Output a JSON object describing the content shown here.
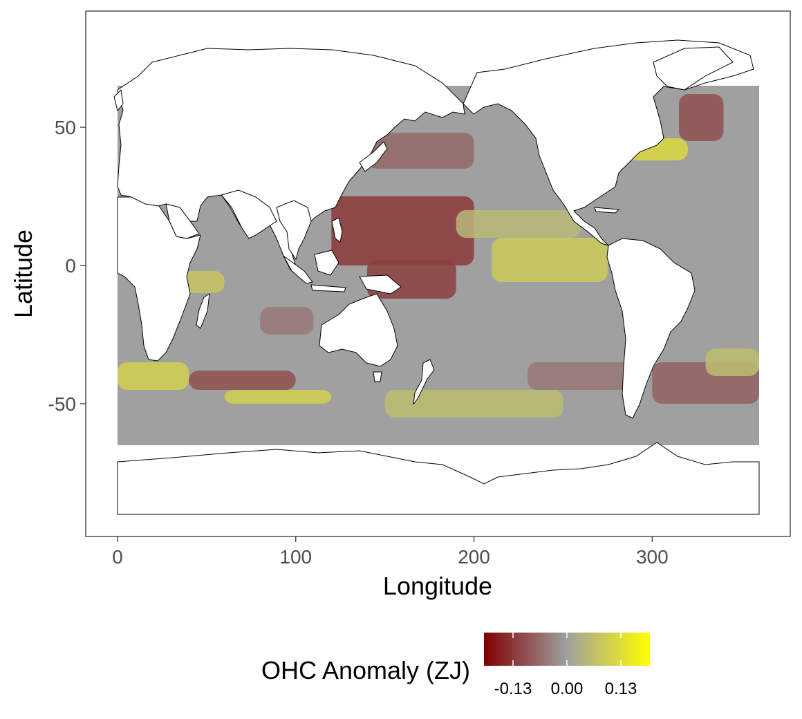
{
  "chart_data": {
    "type": "heatmap",
    "title": "",
    "xlabel": "Longitude",
    "ylabel": "Latitude",
    "xlim": [
      -18,
      378
    ],
    "ylim": [
      -97,
      92
    ],
    "x_ticks": [
      {
        "value": 0,
        "label": "0"
      },
      {
        "value": 100,
        "label": "100"
      },
      {
        "value": 200,
        "label": "200"
      },
      {
        "value": 300,
        "label": "300"
      }
    ],
    "y_ticks": [
      {
        "value": 50,
        "label": "50"
      },
      {
        "value": 0,
        "label": "0"
      },
      {
        "value": -50,
        "label": "-50"
      }
    ],
    "grid": false,
    "data_extent": {
      "lon": [
        0,
        360
      ],
      "lat": [
        -65,
        65
      ]
    },
    "legend": {
      "title": "OHC Anomaly (ZJ)",
      "position": "bottom",
      "range": [
        -0.2,
        0.2
      ],
      "ticks": [
        {
          "value": -0.13,
          "label": "-0.13"
        },
        {
          "value": 0.0,
          "label": "0.00"
        },
        {
          "value": 0.13,
          "label": "0.13"
        }
      ],
      "colors": [
        "#7f0000",
        "#a0a0a0",
        "#ffff00"
      ]
    },
    "anomaly_regions": [
      {
        "lon": [
          120,
          200
        ],
        "lat": [
          0,
          25
        ],
        "value": -0.13
      },
      {
        "lon": [
          140,
          190
        ],
        "lat": [
          -12,
          2
        ],
        "value": -0.12
      },
      {
        "lon": [
          140,
          200
        ],
        "lat": [
          35,
          48
        ],
        "value": -0.07
      },
      {
        "lon": [
          210,
          275
        ],
        "lat": [
          -6,
          10
        ],
        "value": 0.09
      },
      {
        "lon": [
          190,
          260
        ],
        "lat": [
          10,
          20
        ],
        "value": 0.05
      },
      {
        "lon": [
          315,
          340
        ],
        "lat": [
          45,
          62
        ],
        "value": -0.1
      },
      {
        "lon": [
          285,
          320
        ],
        "lat": [
          38,
          46
        ],
        "value": 0.12
      },
      {
        "lon": [
          0,
          40
        ],
        "lat": [
          -45,
          -35
        ],
        "value": 0.1
      },
      {
        "lon": [
          40,
          100
        ],
        "lat": [
          -45,
          -38
        ],
        "value": -0.1
      },
      {
        "lon": [
          60,
          120
        ],
        "lat": [
          -50,
          -45
        ],
        "value": 0.1
      },
      {
        "lon": [
          20,
          60
        ],
        "lat": [
          -10,
          -2
        ],
        "value": 0.08
      },
      {
        "lon": [
          150,
          250
        ],
        "lat": [
          -55,
          -45
        ],
        "value": 0.06
      },
      {
        "lon": [
          300,
          360
        ],
        "lat": [
          -50,
          -35
        ],
        "value": -0.08
      },
      {
        "lon": [
          330,
          360
        ],
        "lat": [
          -40,
          -30
        ],
        "value": 0.06
      },
      {
        "lon": [
          80,
          110
        ],
        "lat": [
          -25,
          -15
        ],
        "value": -0.05
      },
      {
        "lon": [
          230,
          290
        ],
        "lat": [
          -45,
          -35
        ],
        "value": -0.05
      }
    ]
  }
}
